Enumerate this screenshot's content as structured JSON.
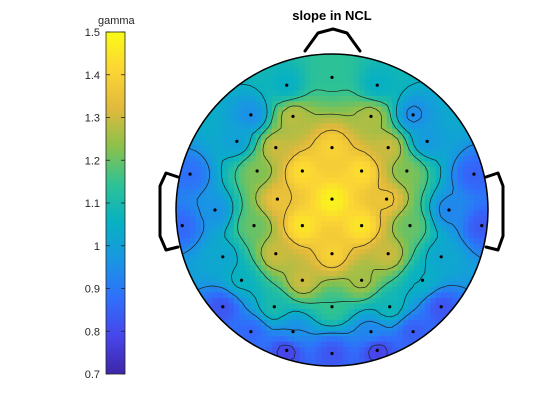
{
  "chart_data": {
    "type": "heatmap",
    "subtype": "EEG scalp topography",
    "title": "slope in NCL",
    "colorbar": {
      "label": "gamma",
      "limits": [
        0.7,
        1.5
      ],
      "ticks": [
        0.7,
        0.8,
        0.9,
        1.0,
        1.1,
        1.2,
        1.3,
        1.4,
        1.5
      ],
      "tick_labels": [
        "0.7",
        "0.8",
        "0.9",
        "1",
        "1.1",
        "1.2",
        "1.3",
        "1.4",
        "1.5"
      ],
      "colormap": "parula",
      "colors": [
        "#3e26a8",
        "#4746eb",
        "#2f6ffb",
        "#1996e3",
        "#08b1c2",
        "#2ec295",
        "#8cc14b",
        "#e1b93c",
        "#fcd535",
        "#f9fb15"
      ]
    },
    "contour_levels": [
      0.8,
      0.95,
      1.05,
      1.15,
      1.25,
      1.35
    ],
    "electrodes": [
      {
        "x": 0.0,
        "y": 0.85,
        "value": 1.14
      },
      {
        "x": -0.29,
        "y": 0.8,
        "value": 1.05
      },
      {
        "x": 0.29,
        "y": 0.8,
        "value": 1.05
      },
      {
        "x": -0.52,
        "y": 0.61,
        "value": 0.95
      },
      {
        "x": 0.52,
        "y": 0.61,
        "value": 0.94
      },
      {
        "x": -0.25,
        "y": 0.6,
        "value": 1.28
      },
      {
        "x": 0.25,
        "y": 0.6,
        "value": 1.27
      },
      {
        "x": -0.61,
        "y": 0.44,
        "value": 1.0
      },
      {
        "x": 0.61,
        "y": 0.44,
        "value": 0.98
      },
      {
        "x": -0.36,
        "y": 0.4,
        "value": 1.3
      },
      {
        "x": 0.0,
        "y": 0.4,
        "value": 1.4
      },
      {
        "x": 0.36,
        "y": 0.4,
        "value": 1.3
      },
      {
        "x": -0.48,
        "y": 0.25,
        "value": 1.22
      },
      {
        "x": -0.19,
        "y": 0.25,
        "value": 1.43
      },
      {
        "x": 0.19,
        "y": 0.25,
        "value": 1.43
      },
      {
        "x": 0.48,
        "y": 0.25,
        "value": 1.22
      },
      {
        "x": -0.91,
        "y": 0.23,
        "value": 0.88
      },
      {
        "x": 0.91,
        "y": 0.23,
        "value": 0.85
      },
      {
        "x": -0.35,
        "y": 0.07,
        "value": 1.35
      },
      {
        "x": 0.0,
        "y": 0.07,
        "value": 1.48
      },
      {
        "x": 0.35,
        "y": 0.07,
        "value": 1.36
      },
      {
        "x": -0.75,
        "y": 0.0,
        "value": 0.96
      },
      {
        "x": 0.75,
        "y": 0.0,
        "value": 0.93
      },
      {
        "x": -0.5,
        "y": -0.1,
        "value": 1.2
      },
      {
        "x": -0.19,
        "y": -0.1,
        "value": 1.45
      },
      {
        "x": 0.19,
        "y": -0.1,
        "value": 1.45
      },
      {
        "x": 0.5,
        "y": -0.1,
        "value": 1.2
      },
      {
        "x": -0.96,
        "y": -0.1,
        "value": 0.86
      },
      {
        "x": 0.96,
        "y": -0.1,
        "value": 0.83
      },
      {
        "x": -0.7,
        "y": -0.3,
        "value": 1.02
      },
      {
        "x": -0.36,
        "y": -0.28,
        "value": 1.3
      },
      {
        "x": 0.0,
        "y": -0.28,
        "value": 1.4
      },
      {
        "x": 0.36,
        "y": -0.28,
        "value": 1.3
      },
      {
        "x": 0.7,
        "y": -0.3,
        "value": 1.02
      },
      {
        "x": -0.58,
        "y": -0.45,
        "value": 1.06
      },
      {
        "x": -0.19,
        "y": -0.45,
        "value": 1.3
      },
      {
        "x": 0.19,
        "y": -0.45,
        "value": 1.26
      },
      {
        "x": 0.58,
        "y": -0.45,
        "value": 1.05
      },
      {
        "x": -0.37,
        "y": -0.62,
        "value": 1.1
      },
      {
        "x": 0.0,
        "y": -0.62,
        "value": 1.15
      },
      {
        "x": 0.37,
        "y": -0.62,
        "value": 1.08
      },
      {
        "x": -0.7,
        "y": -0.62,
        "value": 0.82
      },
      {
        "x": 0.7,
        "y": -0.62,
        "value": 0.82
      },
      {
        "x": -0.52,
        "y": -0.78,
        "value": 0.86
      },
      {
        "x": 0.52,
        "y": -0.78,
        "value": 0.84
      },
      {
        "x": -0.25,
        "y": -0.78,
        "value": 0.95
      },
      {
        "x": 0.25,
        "y": -0.78,
        "value": 0.93
      },
      {
        "x": -0.29,
        "y": -0.9,
        "value": 0.78
      },
      {
        "x": 0.0,
        "y": -0.92,
        "value": 0.82
      },
      {
        "x": 0.29,
        "y": -0.9,
        "value": 0.78
      }
    ]
  }
}
